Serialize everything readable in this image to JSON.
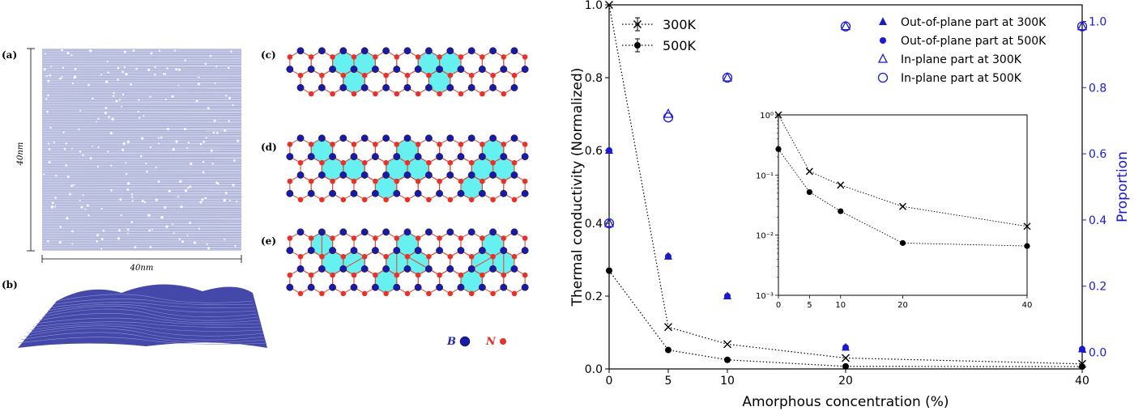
{
  "panels": {
    "a": {
      "label": "(a)",
      "height_label": "40nm",
      "width_label": "40nm"
    },
    "b": {
      "label": "(b)"
    },
    "c": {
      "label": "(c)"
    },
    "d": {
      "label": "(d)"
    },
    "e": {
      "label": "(e)"
    },
    "atom_legend": {
      "boron": "B",
      "nitrogen": "N"
    }
  },
  "colors": {
    "boron": "#1a1aa8",
    "nitrogen": "#e8312a",
    "bond": "#d8503a",
    "fill": "#66f0f0",
    "sheet": "#3a3f9a",
    "right_axis": "#1a1acc"
  },
  "chart_data": [
    {
      "type": "scatter",
      "name": "main",
      "xlabel": "Amorphous concentration (%)",
      "ylabel": "Thermal conductivity (Normalized)",
      "y2label": "Proportion",
      "xlim": [
        0,
        40
      ],
      "ylim": [
        0,
        1.0
      ],
      "y2lim": [
        -0.05,
        1.05
      ],
      "x_ticks": [
        0,
        5,
        10,
        20,
        40
      ],
      "y_ticks": [
        0.0,
        0.2,
        0.4,
        0.6,
        0.8,
        1.0
      ],
      "y2_ticks": [
        0.0,
        0.2,
        0.4,
        0.6,
        0.8,
        1.0
      ],
      "x_tick_labels": [
        "0",
        "5",
        "10",
        "20",
        "40"
      ],
      "y_tick_labels": [
        "0.0",
        "0.2",
        "0.4",
        "0.6",
        "0.8",
        "1.0"
      ],
      "y2_tick_labels": [
        "0.0",
        "0.2",
        "0.4",
        "0.6",
        "0.8",
        "1.0"
      ],
      "grid": false,
      "legends": [
        {
          "position": "upper-left",
          "entries": [
            "300K",
            "500K"
          ]
        },
        {
          "position": "upper-right",
          "entries": [
            "Out-of-plane part at 300K",
            "Out-of-plane part at 500K",
            "In-plane part at 300K",
            "In-plane part at 500K"
          ]
        }
      ],
      "x": [
        0,
        5,
        10,
        20,
        40
      ],
      "series": [
        {
          "name": "300K",
          "axis": "left",
          "marker": "x",
          "line": "dotted",
          "values": [
            1.0,
            0.115,
            0.068,
            0.03,
            0.014
          ]
        },
        {
          "name": "500K",
          "axis": "left",
          "marker": "filled-circle",
          "line": "dotted",
          "values": [
            0.27,
            0.052,
            0.025,
            0.007,
            0.0065
          ]
        },
        {
          "name": "Out-of-plane part at 300K",
          "axis": "right",
          "marker": "filled-triangle",
          "values": [
            0.61,
            0.29,
            0.17,
            0.015,
            0.01
          ]
        },
        {
          "name": "Out-of-plane part at 500K",
          "axis": "right",
          "marker": "filled-circle",
          "values": [
            0.61,
            0.29,
            0.17,
            0.015,
            0.01
          ]
        },
        {
          "name": "In-plane part at 300K",
          "axis": "right",
          "marker": "open-triangle",
          "values": [
            0.39,
            0.72,
            0.83,
            0.985,
            0.985
          ]
        },
        {
          "name": "In-plane part at 500K",
          "axis": "right",
          "marker": "open-circle",
          "values": [
            0.39,
            0.71,
            0.83,
            0.985,
            0.985
          ]
        }
      ]
    },
    {
      "type": "line",
      "name": "inset",
      "yscale": "log",
      "xlim": [
        0,
        40
      ],
      "ylim": [
        0.001,
        1
      ],
      "x_ticks": [
        0,
        5,
        10,
        20,
        40
      ],
      "x_tick_labels": [
        "0",
        "5",
        "10",
        "20",
        "40"
      ],
      "y_ticks": [
        0.001,
        0.01,
        0.1,
        1
      ],
      "y_tick_labels": [
        "10⁻³",
        "10⁻²",
        "10⁻¹",
        "10⁰"
      ],
      "x": [
        0,
        5,
        10,
        20,
        40
      ],
      "series": [
        {
          "name": "300K",
          "marker": "x",
          "line": "dotted",
          "values": [
            1.0,
            0.115,
            0.068,
            0.03,
            0.014
          ]
        },
        {
          "name": "500K",
          "marker": "filled-circle",
          "line": "dotted",
          "values": [
            0.27,
            0.052,
            0.025,
            0.0074,
            0.0066
          ]
        }
      ]
    }
  ]
}
